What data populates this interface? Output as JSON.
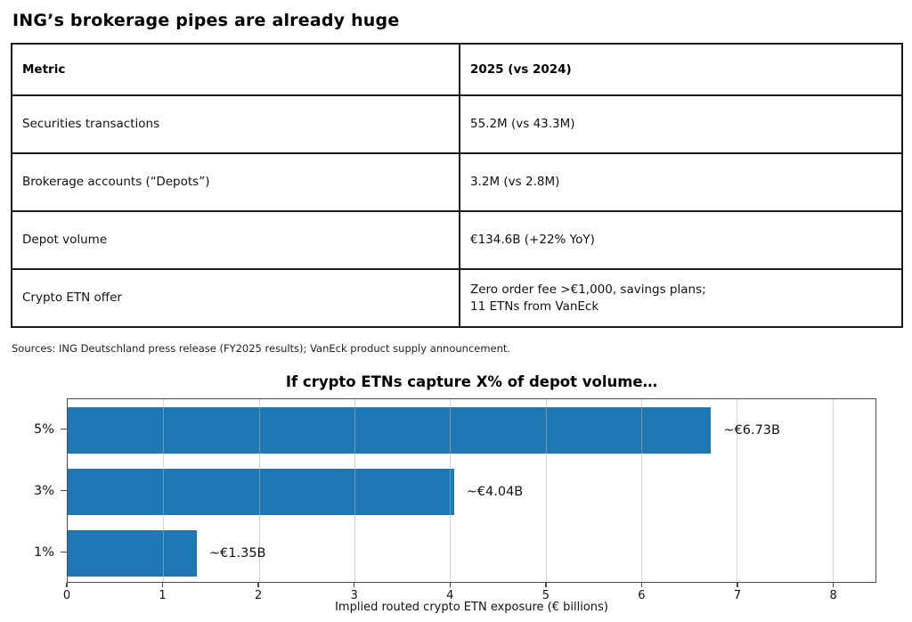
{
  "title": "ING’s brokerage pipes are already huge",
  "table": {
    "headers": [
      "Metric",
      "2025 (vs 2024)"
    ],
    "rows": [
      {
        "metric": "Securities transactions",
        "value": "55.2M (vs 43.3M)"
      },
      {
        "metric": "Brokerage accounts (“Depots”)",
        "value": "3.2M (vs 2.8M)"
      },
      {
        "metric": "Depot volume",
        "value": "€134.6B (+22% YoY)"
      },
      {
        "metric": "Crypto ETN offer",
        "value": "Zero order fee >€1,000, savings plans;\n11 ETNs from VanEck"
      }
    ]
  },
  "sources": "Sources: ING Deutschland press release (FY2025 results); VanEck product supply announcement.",
  "chart_data": {
    "type": "bar",
    "orientation": "horizontal",
    "title": "If crypto ETNs capture X% of depot volume…",
    "categories": [
      "5%",
      "3%",
      "1%"
    ],
    "values": [
      6.73,
      4.04,
      1.35
    ],
    "bar_labels": [
      "~€6.73B",
      "~€4.04B",
      "~€1.35B"
    ],
    "xlabel": "Implied routed crypto ETN exposure (€ billions)",
    "xlim": [
      0,
      8.45
    ],
    "x_ticks": [
      0,
      1,
      2,
      3,
      4,
      5,
      6,
      7,
      8
    ],
    "bar_color": "#1f77b4",
    "grid": true,
    "legend": false
  }
}
